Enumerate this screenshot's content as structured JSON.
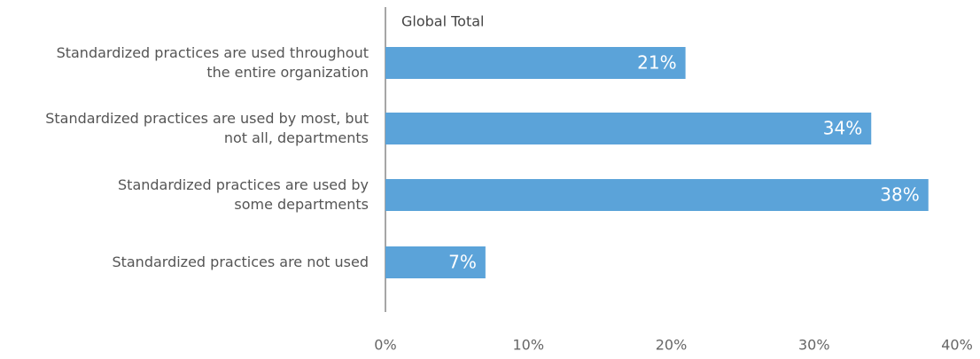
{
  "chart_data": {
    "type": "hbar",
    "subtitle": "Global Total",
    "categories": [
      "Standardized practices are used throughout\nthe entire organization",
      "Standardized practices are used by most, but\nnot all, departments",
      "Standardized practices are used by\nsome departments",
      "Standardized practices are not used"
    ],
    "values": [
      21,
      34,
      38,
      7
    ],
    "value_labels": [
      "21%",
      "34%",
      "38%",
      "7%"
    ],
    "color": "#5ba3d9",
    "xlim": [
      0,
      40
    ],
    "xticks": [
      {
        "value": 0,
        "label": "0%"
      },
      {
        "value": 10,
        "label": "10%"
      },
      {
        "value": 20,
        "label": "20%"
      },
      {
        "value": 30,
        "label": "30%"
      },
      {
        "value": 40,
        "label": "40%"
      }
    ]
  }
}
